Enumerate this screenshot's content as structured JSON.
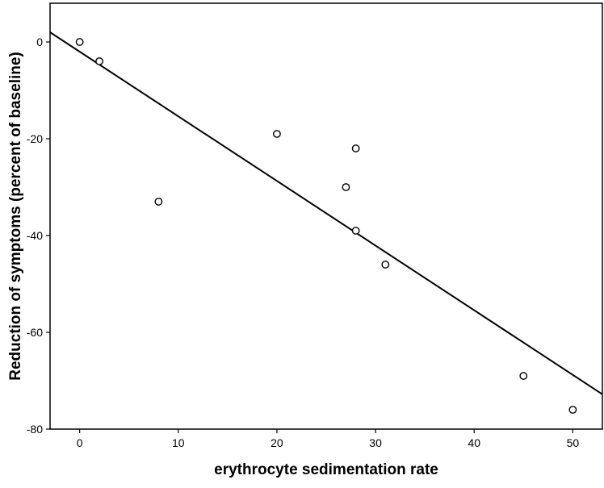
{
  "chart_data": {
    "type": "scatter",
    "title": "",
    "xlabel": "erythrocyte sedimentation rate",
    "ylabel": "Reduction of symptoms (percent of baseline)",
    "xlim": [
      -3,
      53
    ],
    "ylim": [
      -80,
      8
    ],
    "x_ticks": [
      0,
      10,
      20,
      30,
      40,
      50
    ],
    "y_ticks": [
      0,
      -20,
      -40,
      -60,
      -80
    ],
    "x_tick_labels": [
      "0",
      "10",
      "20",
      "30",
      "40",
      "50"
    ],
    "y_tick_labels": [
      "0",
      "-20",
      "-40",
      "-60",
      "-80"
    ],
    "grid": false,
    "points": [
      {
        "x": 0,
        "y": 0
      },
      {
        "x": 2,
        "y": -4
      },
      {
        "x": 8,
        "y": -33
      },
      {
        "x": 20,
        "y": -19
      },
      {
        "x": 27,
        "y": -30
      },
      {
        "x": 28,
        "y": -22
      },
      {
        "x": 28,
        "y": -39
      },
      {
        "x": 31,
        "y": -46
      },
      {
        "x": 45,
        "y": -69
      },
      {
        "x": 50,
        "y": -76
      }
    ],
    "fit_line": {
      "x": [
        -3,
        53
      ],
      "y": [
        2,
        -72.8
      ]
    },
    "colors": {
      "axis": "#000000",
      "marker_stroke": "#000000",
      "marker_fill": "#ffffff",
      "line": "#000000",
      "background": "#ffffff"
    }
  }
}
